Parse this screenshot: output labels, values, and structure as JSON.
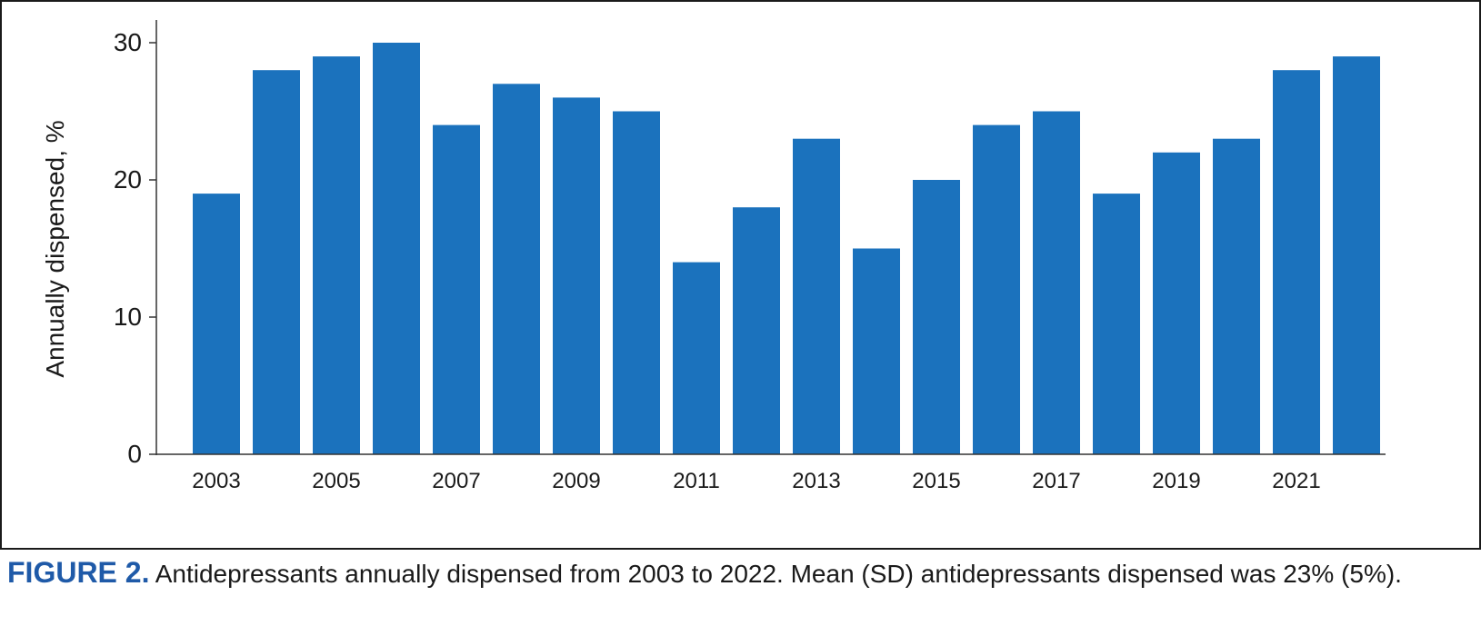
{
  "caption": {
    "label": "FIGURE 2.",
    "text": "Antidepressants annually dispensed from 2003 to 2022. Mean (SD) antidepressants dispensed was 23% (5%)."
  },
  "chart_data": {
    "type": "bar",
    "categories": [
      "2003",
      "2004",
      "2005",
      "2006",
      "2007",
      "2008",
      "2009",
      "2010",
      "2011",
      "2012",
      "2013",
      "2014",
      "2015",
      "2016",
      "2017",
      "2018",
      "2019",
      "2020",
      "2021",
      "2022"
    ],
    "values": [
      19,
      28,
      29,
      30,
      24,
      27,
      26,
      25,
      14,
      18,
      23,
      15,
      20,
      24,
      25,
      19,
      22,
      23,
      28,
      29
    ],
    "x_tick_labels": [
      "2003",
      "2005",
      "2007",
      "2009",
      "2011",
      "2013",
      "2015",
      "2017",
      "2019",
      "2021"
    ],
    "y_ticks": [
      "0",
      "10",
      "20",
      "30"
    ],
    "ylim": [
      0,
      30
    ],
    "ylabel": "Annually dispensed, %",
    "xlabel": "",
    "grid": false,
    "bar_color": "#1b72bd"
  }
}
